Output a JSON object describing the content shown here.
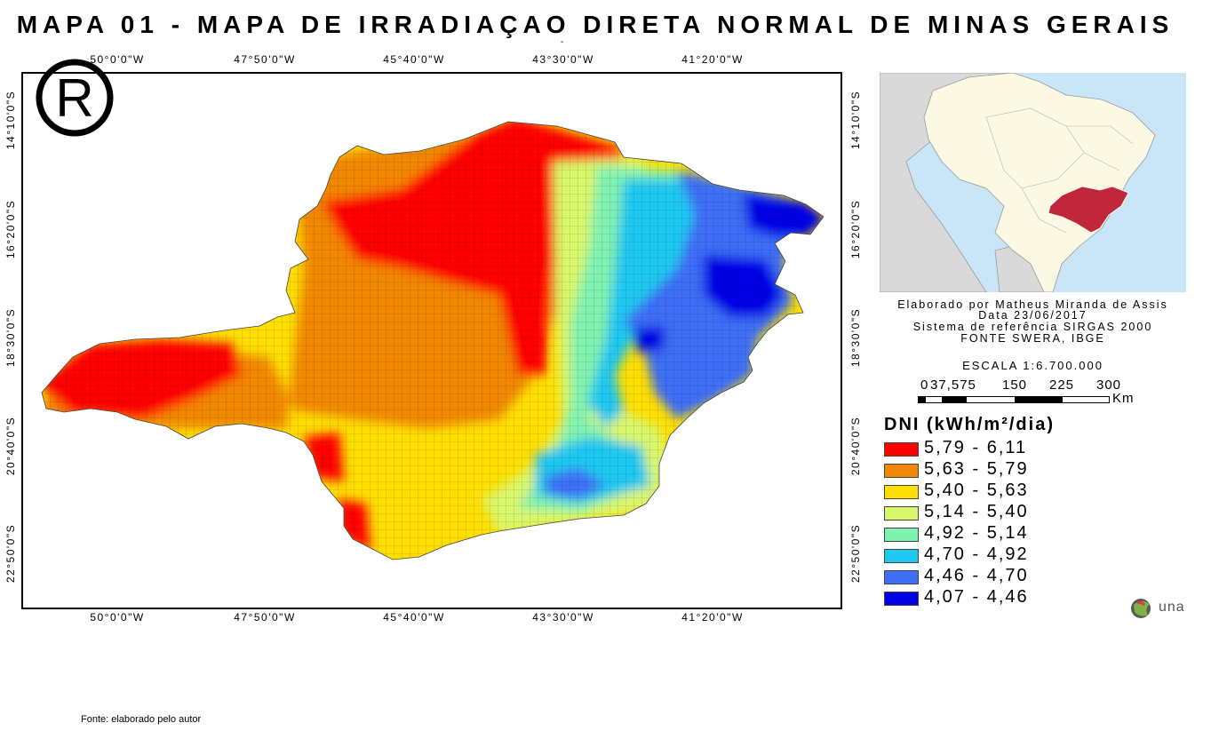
{
  "title": "MAPA 01 - MAPA DE IRRADIAÇAO DIRETA NORMAL DE MINAS GERAIS",
  "title_dash_mark": "-",
  "lon_ticks": [
    "50°0'0\"W",
    "47°50'0\"W",
    "45°40'0\"W",
    "43°30'0\"W",
    "41°20'0\"W"
  ],
  "lat_ticks": [
    "14°10'0\"S",
    "16°20'0\"S",
    "18°30'0\"S",
    "20°40'0\"S",
    "22°50'0\"S"
  ],
  "registered_mark": "R",
  "info_lines": [
    "Elaborado por Matheus Miranda de Assis",
    "Data 23/06/2017",
    "Sistema de referência SIRGAS 2000",
    "FONTE SWERA, IBGE"
  ],
  "scale_text": "ESCALA 1:6.700.000",
  "scale_labels": [
    "0",
    "37,575",
    "150",
    "225",
    "300"
  ],
  "scale_unit": "Km",
  "legend": {
    "title": "DNI (kWh/m²/dia)",
    "items": [
      {
        "label": "5,79 - 6,11",
        "color": "#ff0000"
      },
      {
        "label": "5,63 - 5,79",
        "color": "#f28705"
      },
      {
        "label": "5,40 - 5,63",
        "color": "#ffdf00"
      },
      {
        "label": "5,14 - 5,40",
        "color": "#d9f76a"
      },
      {
        "label": "4,92 - 5,14",
        "color": "#80f2b0"
      },
      {
        "label": "4,70 - 4,92",
        "color": "#1ec8f0"
      },
      {
        "label": "4,46 - 4,70",
        "color": "#3d6ef5"
      },
      {
        "label": "4,07 - 4,46",
        "color": "#0000e6"
      }
    ]
  },
  "locator_colors": {
    "ocean": "#c8e6f7",
    "brazil": "#fbf8e4",
    "neighbors": "#d9d9d9",
    "highlight": "#c0273a"
  },
  "logo_text": "una",
  "source": "Fonte: elaborado pelo autor"
}
